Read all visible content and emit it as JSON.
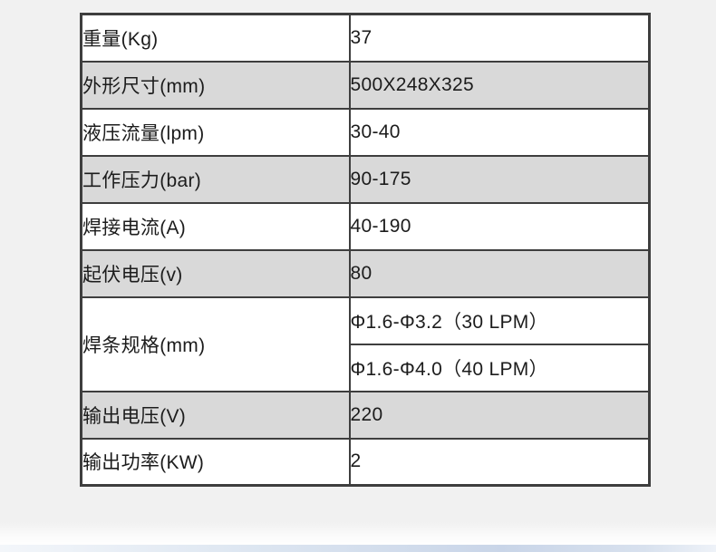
{
  "page": {
    "background_color": "#f1f1f1",
    "bottom_band_color": "#c9d5e8"
  },
  "table": {
    "border_color": "#3e3e3e",
    "stripe_color": "#d9d9d9",
    "text_color": "#1c1c1c",
    "rows": [
      {
        "label": "重量(Kg)",
        "values": [
          "37"
        ],
        "shaded": false
      },
      {
        "label": "外形尺寸(mm)",
        "values": [
          "500X248X325"
        ],
        "shaded": true
      },
      {
        "label": "液压流量(lpm)",
        "values": [
          "30-40"
        ],
        "shaded": false
      },
      {
        "label": "工作压力(bar)",
        "values": [
          "90-175"
        ],
        "shaded": true
      },
      {
        "label": "焊接电流(A)",
        "values": [
          "40-190"
        ],
        "shaded": false
      },
      {
        "label": "起伏电压(v)",
        "values": [
          "80"
        ],
        "shaded": true
      },
      {
        "label": "焊条规格(mm)",
        "values": [
          "Φ1.6-Φ3.2（30 LPM）",
          "Φ1.6-Φ4.0（40 LPM）"
        ],
        "shaded": false
      },
      {
        "label": "输出电压(V)",
        "values": [
          "220"
        ],
        "shaded": true
      },
      {
        "label": "输出功率(KW)",
        "values": [
          "2"
        ],
        "shaded": false
      }
    ]
  }
}
